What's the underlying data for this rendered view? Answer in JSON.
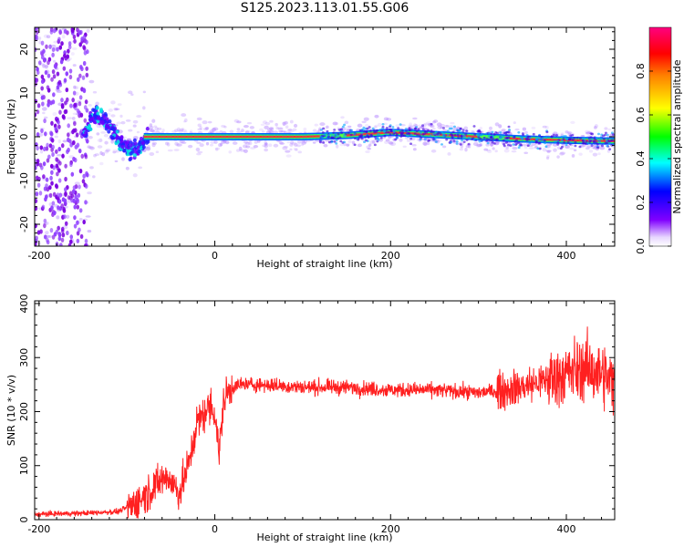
{
  "figure": {
    "title": "S125.2023.113.01.55.G06"
  },
  "chart_data": [
    {
      "type": "heatmap",
      "title": "S125.2023.113.01.55.G06",
      "xlabel": "Height of straight line (km)",
      "ylabel": "Frequency (Hz)",
      "xlim": [
        -205,
        455
      ],
      "ylim": [
        -25,
        25
      ],
      "x_ticks": [
        -200,
        0,
        200,
        400
      ],
      "y_ticks": [
        -20,
        -10,
        0,
        10,
        20
      ],
      "colorbar": {
        "label": "Normalized spectral amplitude",
        "range": [
          0,
          1
        ],
        "ticks": [
          0.0,
          0.2,
          0.4,
          0.6,
          0.8
        ]
      },
      "colors": {
        "low": "#8000ff",
        "mid": "#00ff00",
        "high": "#ff2020"
      },
      "ridge": {
        "description_points_x": [
          -60,
          0,
          100,
          150,
          200,
          250,
          300,
          350,
          400,
          455
        ],
        "frequency_hz": [
          0,
          0,
          0,
          0.3,
          1.0,
          0.5,
          0,
          -0.5,
          -0.8,
          -1.0
        ]
      }
    },
    {
      "type": "line",
      "xlabel": "Height of straight line (km)",
      "ylabel": "SNR (10 * v/v)",
      "xlim": [
        -205,
        455
      ],
      "ylim": [
        0,
        405
      ],
      "x_ticks": [
        -200,
        0,
        200,
        400
      ],
      "y_ticks": [
        0,
        100,
        200,
        300,
        400
      ],
      "color": "#ff0000",
      "series": [
        {
          "x": [
            -205,
            -150,
            -110,
            -90,
            -70,
            -55,
            -40,
            -30,
            -20,
            -10,
            -5,
            0,
            5,
            10,
            15,
            20,
            30,
            50,
            100,
            150,
            200,
            250,
            300,
            330,
            360,
            380,
            400,
            420,
            440,
            455
          ],
          "y": [
            10,
            12,
            15,
            30,
            60,
            80,
            50,
            100,
            180,
            200,
            210,
            200,
            120,
            220,
            235,
            245,
            250,
            250,
            245,
            245,
            240,
            240,
            235,
            240,
            250,
            260,
            270,
            280,
            270,
            250
          ]
        }
      ]
    }
  ]
}
